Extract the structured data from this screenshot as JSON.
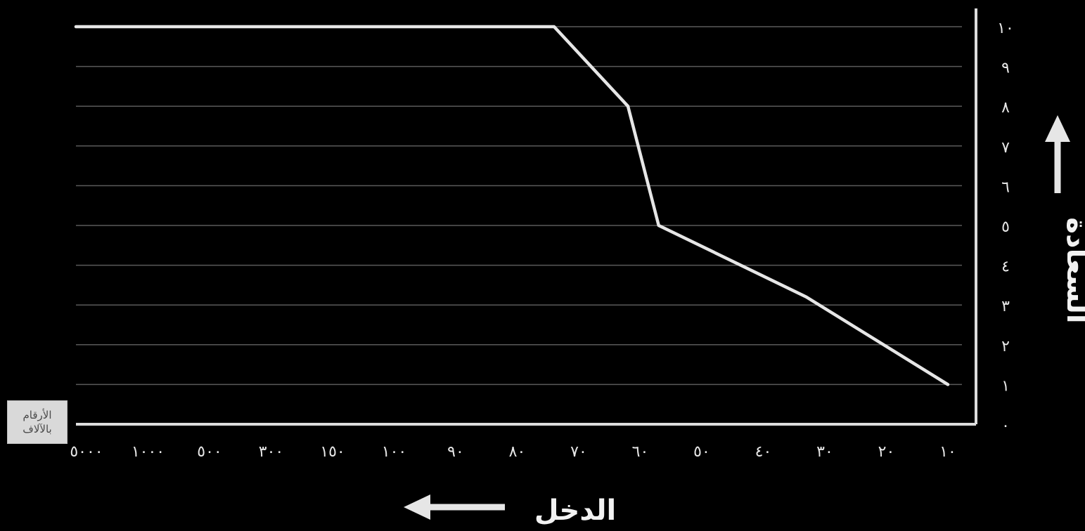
{
  "chart_data": {
    "type": "line",
    "categories": [
      "١٠",
      "٢٠",
      "٣٠",
      "٤٠",
      "٥٠",
      "٦٠",
      "٧٠",
      "٨٠",
      "٩٠",
      "١٠٠",
      "١٥٠",
      "٣٠٠",
      "٥٠٠",
      "١٠٠٠",
      "٥٠٠٠"
    ],
    "x_axis_direction": "right-to-left",
    "y_ticks": [
      "٠",
      "١",
      "٢",
      "٣",
      "٤",
      "٥",
      "٦",
      "٧",
      "٨",
      "٩",
      "١٠"
    ],
    "ylim": [
      0,
      10
    ],
    "series": [
      {
        "points": [
          {
            "x_index": 0,
            "y": 1
          },
          {
            "x_index": 2.3,
            "y": 3.2
          },
          {
            "x_index": 4.7,
            "y": 5
          },
          {
            "x_index": 5.2,
            "y": 8
          },
          {
            "x_index": 6.4,
            "y": 10
          },
          {
            "x_index": 14,
            "y": 10
          }
        ],
        "color": "#e6e6e6"
      }
    ],
    "xlabel": "الدخل",
    "ylabel": "السعادة",
    "x_units_note": "الأرقام بالآلاف",
    "grid": true,
    "grid_color": "#5a5a5a",
    "axis_color": "#dddddd",
    "arrow_icons": [
      "arrow-left-icon",
      "arrow-up-icon"
    ]
  }
}
